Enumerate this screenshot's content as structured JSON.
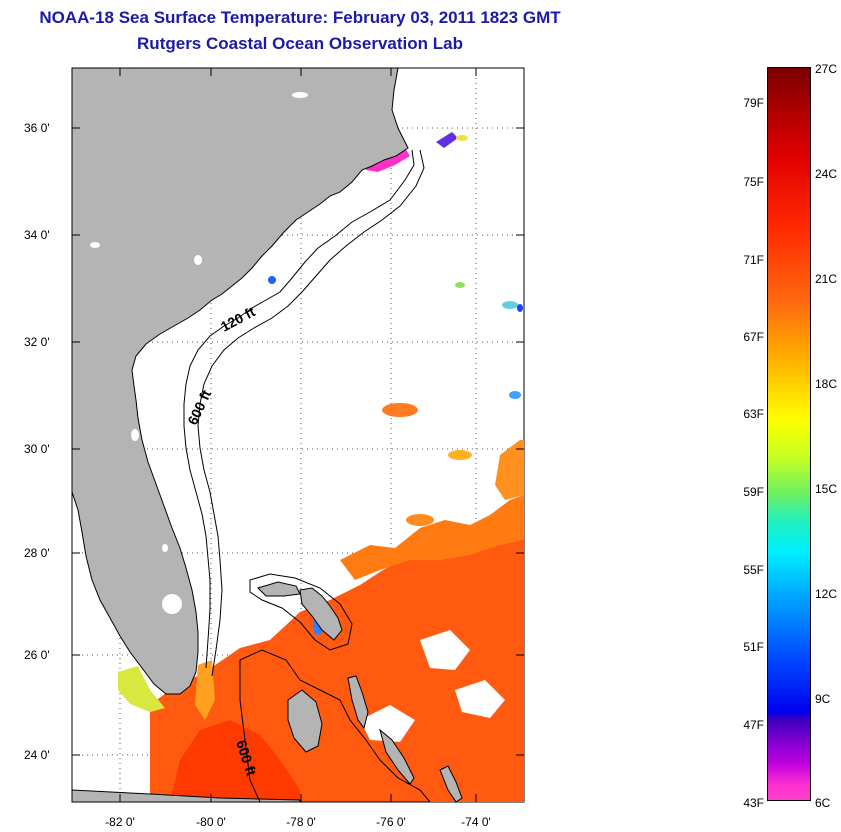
{
  "header": {
    "title": "NOAA-18 Sea Surface Temperature:  February 03, 2011 1823 GMT",
    "subtitle": "Rutgers Coastal Ocean Observation Lab"
  },
  "map": {
    "lat_labels": [
      "36 0'",
      "34 0'",
      "32 0'",
      "30 0'",
      "28 0'",
      "26 0'",
      "24 0'"
    ],
    "lon_labels": [
      "-82 0'",
      "-80 0'",
      "-78 0'",
      "-76 0'",
      "-74 0'"
    ],
    "contour_labels": [
      "120 ft",
      "600 ft",
      "600 ft"
    ],
    "colors": {
      "land": "#b4b4b4",
      "warm_water": "#ff5a10",
      "shelf_water": "#ffa020",
      "estuary": "#ff30c8"
    }
  },
  "colorbar": {
    "fahrenheit_labels": [
      "79F",
      "75F",
      "71F",
      "67F",
      "63F",
      "59F",
      "55F",
      "51F",
      "47F",
      "43F"
    ],
    "celsius_labels": [
      "27C",
      "24C",
      "21C",
      "18C",
      "15C",
      "12C",
      "9C",
      "6C"
    ]
  }
}
